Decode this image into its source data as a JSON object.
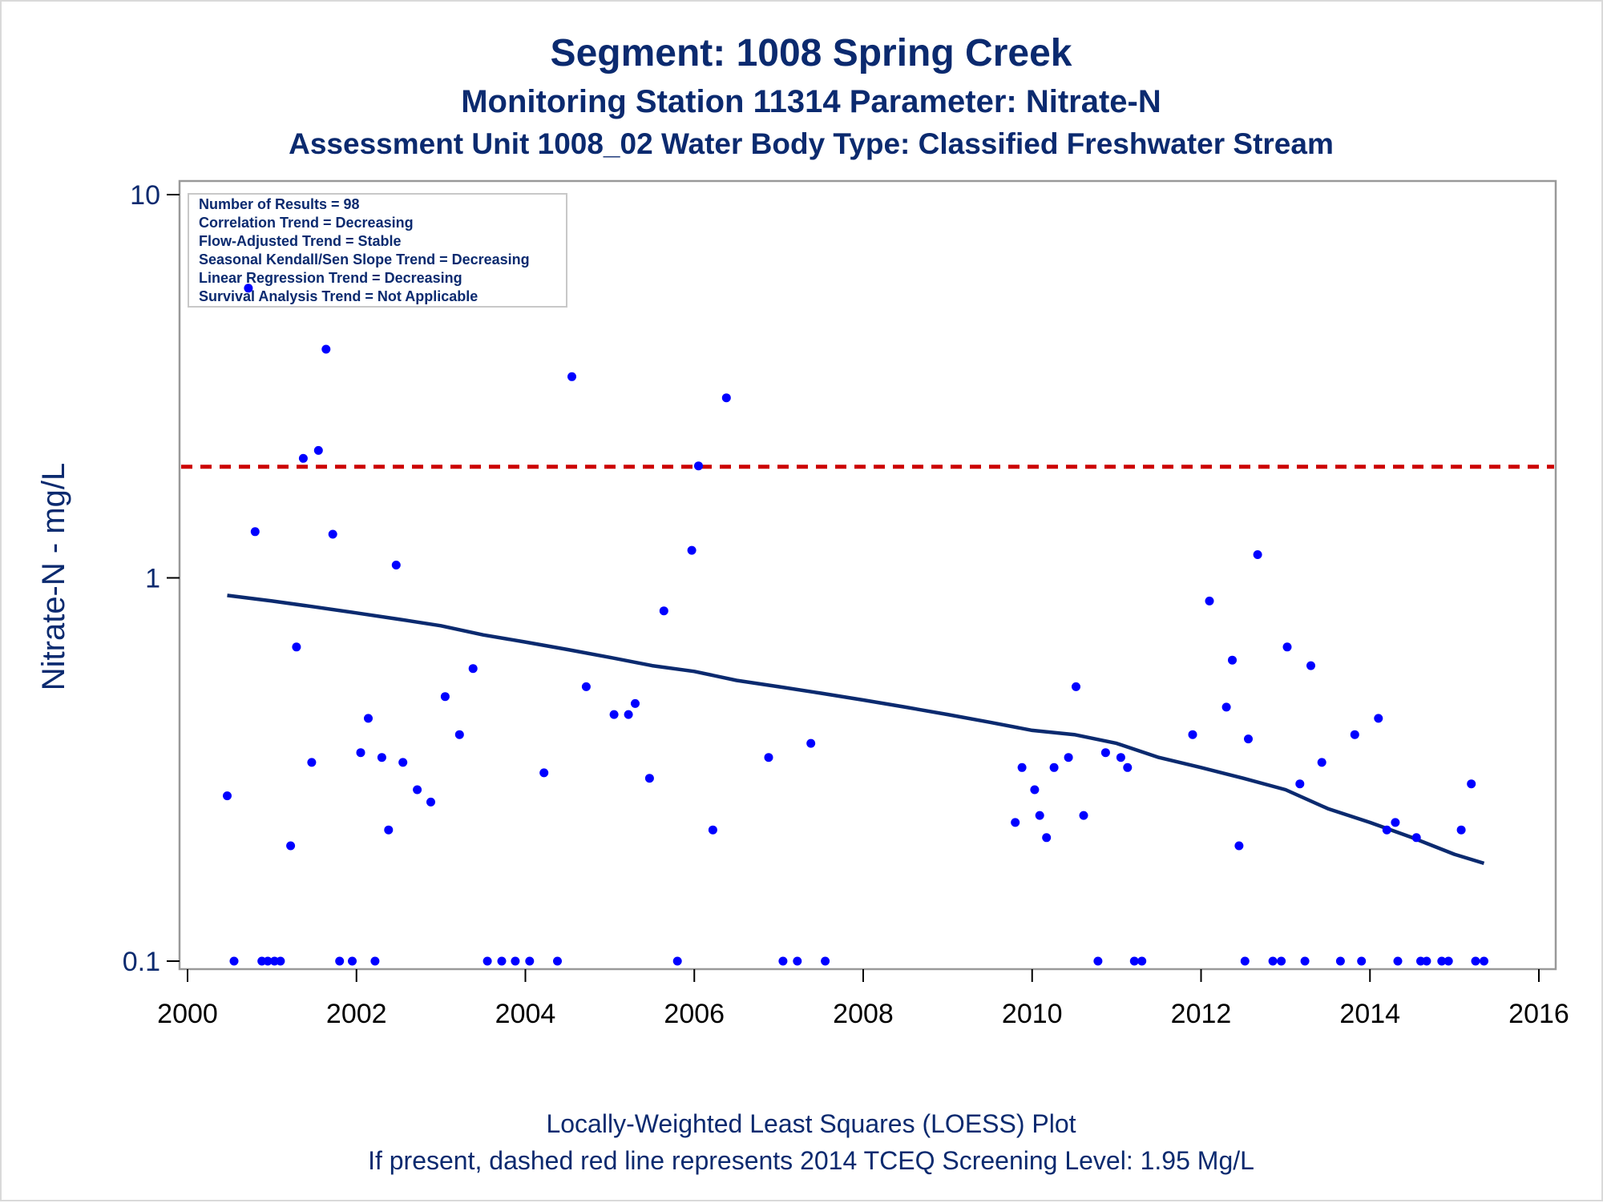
{
  "titles": {
    "line1": "Segment: 1008  Spring Creek",
    "line2": "Monitoring Station 11314 Parameter: Nitrate-N",
    "line3": "Assessment Unit 1008_02   Water Body Type: Classified Freshwater Stream"
  },
  "stats_box": [
    "Number of Results = 98",
    "Correlation Trend = Decreasing",
    "Flow-Adjusted Trend = Stable",
    "Seasonal Kendall/Sen Slope Trend = Decreasing",
    "Linear Regression Trend = Decreasing",
    "Survival Analysis Trend = Not Applicable"
  ],
  "footnotes": {
    "line1": "Locally-Weighted Least Squares (LOESS) Plot",
    "line2": "If present, dashed red line represents 2014 TCEQ Screening Level: 1.95 Mg/L"
  },
  "colors": {
    "points": "#0000ff",
    "loess": "#0b2a6f",
    "screening": "#cc0000",
    "text": "#0b2a6f",
    "frame": "#999999"
  },
  "chart_data": {
    "type": "scatter",
    "title": "Segment: 1008  Spring Creek",
    "xlabel": "",
    "ylabel": "Nitrate-N - mg/L",
    "xlim": [
      2000,
      2016
    ],
    "ylim": [
      0.1,
      10
    ],
    "y_scale": "log",
    "x_ticks": [
      "2000",
      "2002",
      "2004",
      "2006",
      "2008",
      "2010",
      "2012",
      "2014",
      "2016"
    ],
    "y_ticks": [
      "0.1",
      "1",
      "10"
    ],
    "grid": false,
    "screening_level": 1.95,
    "series": [
      {
        "type": "scatter",
        "x": [
          2000.47,
          2000.55,
          2000.72,
          2000.8,
          2000.88,
          2000.95,
          2001.03,
          2001.1,
          2001.22,
          2001.29,
          2001.37,
          2001.47,
          2001.55,
          2001.64,
          2001.72,
          2001.8,
          2001.95,
          2002.05,
          2002.14,
          2002.22,
          2002.3,
          2002.38,
          2002.47,
          2002.55,
          2002.72,
          2002.88,
          2003.05,
          2003.22,
          2003.38,
          2003.55,
          2003.72,
          2003.88,
          2004.05,
          2004.22,
          2004.38,
          2004.55,
          2004.72,
          2005.05,
          2005.22,
          2005.3,
          2005.47,
          2005.64,
          2005.8,
          2005.97,
          2006.05,
          2006.22,
          2006.38,
          2006.88,
          2007.05,
          2007.22,
          2007.38,
          2007.55,
          2009.8,
          2009.88,
          2010.03,
          2010.09,
          2010.17,
          2010.26,
          2010.43,
          2010.52,
          2010.61,
          2010.78,
          2010.87,
          2011.05,
          2011.13,
          2011.21,
          2011.3,
          2011.9,
          2012.1,
          2012.3,
          2012.37,
          2012.45,
          2012.52,
          2012.56,
          2012.67,
          2012.85,
          2012.95,
          2013.02,
          2013.17,
          2013.23,
          2013.3,
          2013.43,
          2013.65,
          2013.82,
          2013.9,
          2014.1,
          2014.2,
          2014.3,
          2014.33,
          2014.55,
          2014.6,
          2014.67,
          2014.85,
          2014.93,
          2015.08,
          2015.2,
          2015.25,
          2015.35
        ],
        "y": [
          0.27,
          0.1,
          5.7,
          1.32,
          0.1,
          0.1,
          0.1,
          0.1,
          0.2,
          0.66,
          2.05,
          0.33,
          2.15,
          3.95,
          1.3,
          0.1,
          0.1,
          0.35,
          0.43,
          0.1,
          0.34,
          0.22,
          1.08,
          0.33,
          0.28,
          0.26,
          0.49,
          0.39,
          0.58,
          0.1,
          0.1,
          0.1,
          0.1,
          0.31,
          0.1,
          3.35,
          0.52,
          0.44,
          0.44,
          0.47,
          0.3,
          0.82,
          0.1,
          1.18,
          1.96,
          0.22,
          2.95,
          0.34,
          0.1,
          0.1,
          0.37,
          0.1,
          0.23,
          0.32,
          0.28,
          0.24,
          0.21,
          0.32,
          0.34,
          0.52,
          0.24,
          0.1,
          0.35,
          0.34,
          0.32,
          0.1,
          0.1,
          0.39,
          0.87,
          0.46,
          0.61,
          0.2,
          0.1,
          0.38,
          1.15,
          0.1,
          0.1,
          0.66,
          0.29,
          0.1,
          0.59,
          0.33,
          0.1,
          0.39,
          0.1,
          0.43,
          0.22,
          0.23,
          0.1,
          0.21,
          0.1,
          0.1,
          0.1,
          0.1,
          0.22,
          0.29,
          0.1,
          0.1
        ]
      },
      {
        "type": "line",
        "x": [
          2000.47,
          2001.0,
          2001.5,
          2002.0,
          2002.5,
          2003.0,
          2003.5,
          2004.0,
          2004.5,
          2005.0,
          2005.5,
          2006.0,
          2006.5,
          2007.0,
          2007.5,
          2008.0,
          2008.5,
          2009.0,
          2009.5,
          2010.0,
          2010.5,
          2011.0,
          2011.5,
          2012.0,
          2012.5,
          2013.0,
          2013.5,
          2014.0,
          2014.5,
          2015.0,
          2015.35
        ],
        "y": [
          0.9,
          0.87,
          0.84,
          0.81,
          0.78,
          0.75,
          0.71,
          0.68,
          0.65,
          0.62,
          0.59,
          0.57,
          0.54,
          0.52,
          0.5,
          0.48,
          0.46,
          0.44,
          0.42,
          0.4,
          0.39,
          0.37,
          0.34,
          0.32,
          0.3,
          0.28,
          0.25,
          0.23,
          0.21,
          0.19,
          0.18
        ]
      }
    ]
  }
}
